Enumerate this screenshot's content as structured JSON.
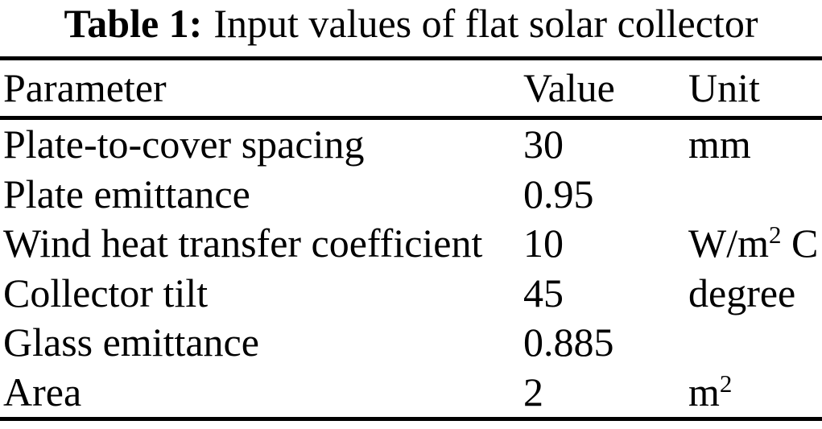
{
  "caption": {
    "label": "Table 1:",
    "text": "Input values of flat solar collector"
  },
  "table": {
    "headers": [
      "Parameter",
      "Value",
      "Unit"
    ],
    "rows": [
      {
        "parameter": "Plate-to-cover spacing",
        "value": "30",
        "unit_pre": "mm",
        "unit_sup": "",
        "unit_post": ""
      },
      {
        "parameter": "Plate emittance",
        "value": "0.95",
        "unit_pre": "",
        "unit_sup": "",
        "unit_post": ""
      },
      {
        "parameter": "Wind heat transfer coefficient",
        "value": "10",
        "unit_pre": "W/m",
        "unit_sup": "2",
        "unit_post": " C"
      },
      {
        "parameter": "Collector tilt",
        "value": "45",
        "unit_pre": "degree",
        "unit_sup": "",
        "unit_post": ""
      },
      {
        "parameter": "Glass emittance",
        "value": "0.885",
        "unit_pre": "",
        "unit_sup": "",
        "unit_post": ""
      },
      {
        "parameter": "Area",
        "value": "2",
        "unit_pre": "m",
        "unit_sup": "2",
        "unit_post": ""
      }
    ]
  },
  "colors": {
    "text": "#000000",
    "background": "#ffffff",
    "rule": "#000000"
  }
}
